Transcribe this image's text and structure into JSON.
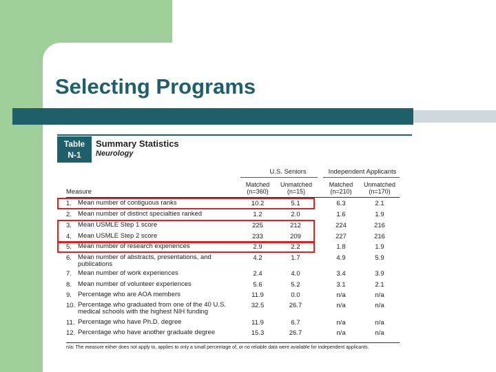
{
  "slide": {
    "title": "Selecting Programs",
    "colors": {
      "accent_dark": "#1f5f6a",
      "accent_green": "#9fcf98",
      "highlight": "#d6232a"
    }
  },
  "table": {
    "badge_line1": "Table",
    "badge_line2": "N-1",
    "title": "Summary Statistics",
    "subtitle": "Neurology",
    "group_seniors": "U.S. Seniors",
    "group_independent": "Independent Applicants",
    "measure_header": "Measure",
    "columns": [
      {
        "line1": "Matched",
        "line2": "(n=360)"
      },
      {
        "line1": "Unmatched",
        "line2": "(n=15)"
      },
      {
        "line1": "Matched",
        "line2": "(n=210)"
      },
      {
        "line1": "Unmatched",
        "line2": "(n=170)"
      }
    ],
    "rows": [
      {
        "num": "1.",
        "label": "Mean number of contiguous ranks",
        "values": [
          "10.2",
          "5.1",
          "6.3",
          "2.1"
        ]
      },
      {
        "num": "2.",
        "label": "Mean number of distinct specialties ranked",
        "values": [
          "1.2",
          "2.0",
          "1.6",
          "1.9"
        ]
      },
      {
        "num": "3.",
        "label": "Mean USMLE Step 1 score",
        "values": [
          "225",
          "212",
          "224",
          "216"
        ]
      },
      {
        "num": "4.",
        "label": "Mean USMLE Step 2 score",
        "values": [
          "233",
          "209",
          "227",
          "216"
        ]
      },
      {
        "num": "5.",
        "label": "Mean number of research experiences",
        "values": [
          "2.9",
          "2.2",
          "1.8",
          "1.9"
        ]
      },
      {
        "num": "6.",
        "label": "Mean number of abstracts, presentations, and publications",
        "values": [
          "4.2",
          "1.7",
          "4.9",
          "5.9"
        ]
      },
      {
        "num": "7.",
        "label": "Mean number of work experiences",
        "values": [
          "2.4",
          "4.0",
          "3.4",
          "3.9"
        ]
      },
      {
        "num": "8.",
        "label": "Mean number of volunteer experiences",
        "values": [
          "5.6",
          "5.2",
          "3.1",
          "2.1"
        ]
      },
      {
        "num": "9.",
        "label": "Percentage who are AOA members",
        "values": [
          "11.9",
          "0.0",
          "n/a",
          "n/a"
        ]
      },
      {
        "num": "10.",
        "label": "Percentage who graduated from one of the 40 U.S. medical schools with the highest NIH funding",
        "values": [
          "32.5",
          "26.7",
          "n/a",
          "n/a"
        ]
      },
      {
        "num": "11.",
        "label": "Percentage who have Ph.D. degree",
        "values": [
          "11.9",
          "6.7",
          "n/a",
          "n/a"
        ]
      },
      {
        "num": "12.",
        "label": "Percentage who have another graduate degree",
        "values": [
          "15.3",
          "26.7",
          "n/a",
          "n/a"
        ]
      }
    ],
    "footnote": "n/a: The measure either does not apply to, applies to only a small percentage of, or no reliable data were available for independent applicants."
  }
}
